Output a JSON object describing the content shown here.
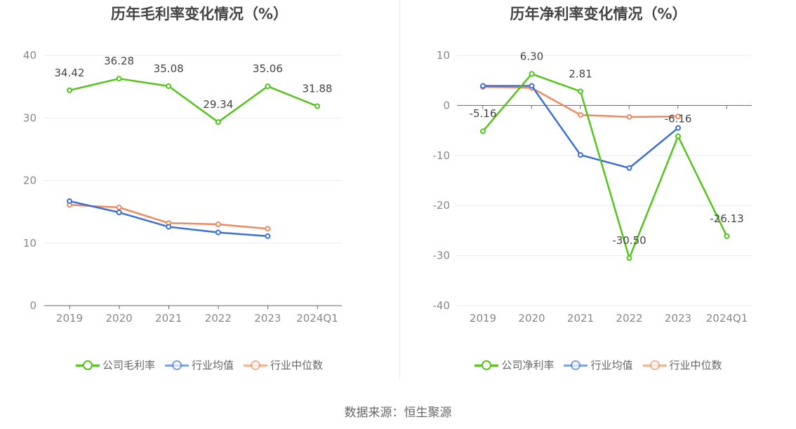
{
  "source": "数据来源：恒生聚源",
  "chart_data": [
    {
      "type": "line",
      "title": "历年毛利率变化情况（%）",
      "categories": [
        "2019",
        "2020",
        "2021",
        "2022",
        "2023",
        "2024Q1"
      ],
      "ylim": [
        0,
        40
      ],
      "yticks": [
        0,
        10,
        20,
        30,
        40
      ],
      "grid": true,
      "legend_position": "bottom",
      "series": [
        {
          "name": "公司毛利率",
          "color": "#52c41a",
          "labeled": true,
          "values": [
            34.42,
            36.28,
            35.08,
            29.34,
            35.06,
            31.88
          ]
        },
        {
          "name": "行业均值",
          "color": "#3a6fd8",
          "labeled": false,
          "values": [
            16.7,
            14.9,
            12.6,
            11.7,
            11.1,
            null
          ]
        },
        {
          "name": "行业中位数",
          "color": "#f08a5d",
          "labeled": false,
          "values": [
            16.1,
            15.7,
            13.2,
            13.0,
            12.3,
            null
          ]
        }
      ],
      "data_labels": [
        "34.42",
        "36.28",
        "35.08",
        "29.34",
        "35.06",
        "31.88"
      ]
    },
    {
      "type": "line",
      "title": "历年净利率变化情况（%）",
      "categories": [
        "2019",
        "2020",
        "2021",
        "2022",
        "2023",
        "2024Q1"
      ],
      "ylim": [
        -40,
        10
      ],
      "yticks": [
        -40,
        -30,
        -20,
        -10,
        0,
        10
      ],
      "grid": true,
      "legend_position": "bottom",
      "series": [
        {
          "name": "公司净利率",
          "color": "#52c41a",
          "labeled": true,
          "values": [
            -5.16,
            6.3,
            2.81,
            -30.5,
            -6.16,
            -26.13
          ]
        },
        {
          "name": "行业均值",
          "color": "#3a6fd8",
          "labeled": false,
          "values": [
            3.9,
            3.9,
            -9.9,
            -12.5,
            -4.5,
            null
          ]
        },
        {
          "name": "行业中位数",
          "color": "#f08a5d",
          "labeled": false,
          "values": [
            3.7,
            3.5,
            -1.9,
            -2.3,
            -2.2,
            null
          ]
        }
      ],
      "data_labels": [
        "-5.16",
        "6.30",
        "2.81",
        "-30.50",
        "-6.16",
        "-26.13"
      ]
    }
  ]
}
